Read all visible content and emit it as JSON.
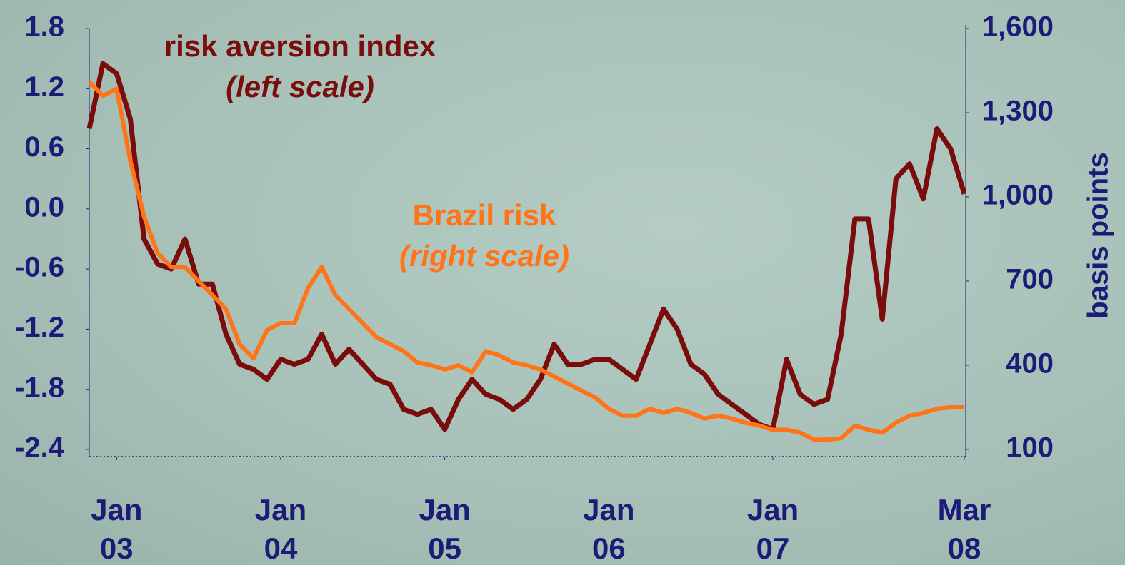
{
  "chart_data": {
    "type": "line",
    "annotations": [
      "risk aversion index",
      "(left scale)",
      "Brazil risk",
      "(right scale)"
    ],
    "y2_label": "basis points",
    "x": [
      "2002-11",
      "2002-12",
      "2003-01",
      "2003-02",
      "2003-03",
      "2003-04",
      "2003-05",
      "2003-06",
      "2003-07",
      "2003-08",
      "2003-09",
      "2003-10",
      "2003-11",
      "2003-12",
      "2004-01",
      "2004-02",
      "2004-03",
      "2004-04",
      "2004-05",
      "2004-06",
      "2004-07",
      "2004-08",
      "2004-09",
      "2004-10",
      "2004-11",
      "2004-12",
      "2005-01",
      "2005-02",
      "2005-03",
      "2005-04",
      "2005-05",
      "2005-06",
      "2005-07",
      "2005-08",
      "2005-09",
      "2005-10",
      "2005-11",
      "2005-12",
      "2006-01",
      "2006-02",
      "2006-03",
      "2006-04",
      "2006-05",
      "2006-06",
      "2006-07",
      "2006-08",
      "2006-09",
      "2006-10",
      "2006-11",
      "2006-12",
      "2007-01",
      "2007-02",
      "2007-03",
      "2007-04",
      "2007-05",
      "2007-06",
      "2007-07",
      "2007-08",
      "2007-09",
      "2007-10",
      "2007-11",
      "2007-12",
      "2008-01",
      "2008-02",
      "2008-03"
    ],
    "series": [
      {
        "name": "risk aversion index",
        "color": "#7a0c0c",
        "values": [
          0.8,
          1.45,
          1.35,
          0.9,
          -0.3,
          -0.55,
          -0.6,
          -0.3,
          -0.75,
          -0.75,
          -1.25,
          -1.55,
          -1.6,
          -1.7,
          -1.5,
          -1.55,
          -1.5,
          -1.25,
          -1.55,
          -1.4,
          -1.55,
          -1.7,
          -1.75,
          -2.0,
          -2.05,
          -2.0,
          -2.2,
          -1.9,
          -1.7,
          -1.85,
          -1.9,
          -2.0,
          -1.9,
          -1.7,
          -1.35,
          -1.55,
          -1.55,
          -1.5,
          -1.5,
          -1.6,
          -1.7,
          -1.35,
          -1.0,
          -1.2,
          -1.55,
          -1.65,
          -1.85,
          -1.95,
          -2.05,
          -2.15,
          -2.2,
          -1.5,
          -1.85,
          -1.95,
          -1.9,
          -1.25,
          -0.1,
          -0.1,
          -1.1,
          0.3,
          0.45,
          0.1,
          0.8,
          0.6,
          0.15
        ]
      },
      {
        "name": "Brazil risk",
        "color": "#ff7418",
        "axis": "y2",
        "values": [
          1410,
          1360,
          1385,
          1130,
          930,
          800,
          750,
          750,
          700,
          650,
          600,
          475,
          425,
          525,
          550,
          550,
          675,
          750,
          650,
          600,
          550,
          500,
          475,
          450,
          410,
          400,
          385,
          400,
          375,
          450,
          435,
          410,
          400,
          385,
          360,
          335,
          310,
          285,
          245,
          220,
          220,
          245,
          230,
          245,
          230,
          210,
          220,
          210,
          195,
          185,
          170,
          170,
          160,
          135,
          135,
          140,
          185,
          170,
          160,
          195,
          220,
          230,
          245,
          250,
          250
        ]
      }
    ],
    "xlim": [
      "2002-11",
      "2008-03"
    ],
    "xticks": [
      {
        "value": "2003-01",
        "label": "Jan 03"
      },
      {
        "value": "2004-01",
        "label": "Jan 04"
      },
      {
        "value": "2005-01",
        "label": "Jan 05"
      },
      {
        "value": "2006-01",
        "label": "Jan 06"
      },
      {
        "value": "2007-01",
        "label": "Jan 07"
      },
      {
        "value": "2008-03",
        "label": "Mar 08"
      }
    ],
    "ylim": [
      -2.4,
      1.8
    ],
    "yticks": [
      -2.4,
      -1.8,
      -1.2,
      -0.6,
      {
        "value": 0,
        "label": "0.0"
      },
      0.6,
      1.2,
      1.8
    ],
    "y2lim": [
      100,
      1600
    ],
    "y2ticks": [
      100,
      400,
      700,
      {
        "value": 1000,
        "label": "1,000"
      },
      {
        "value": 1300,
        "label": "1,300"
      },
      {
        "value": 1600,
        "label": "1,600"
      }
    ]
  }
}
